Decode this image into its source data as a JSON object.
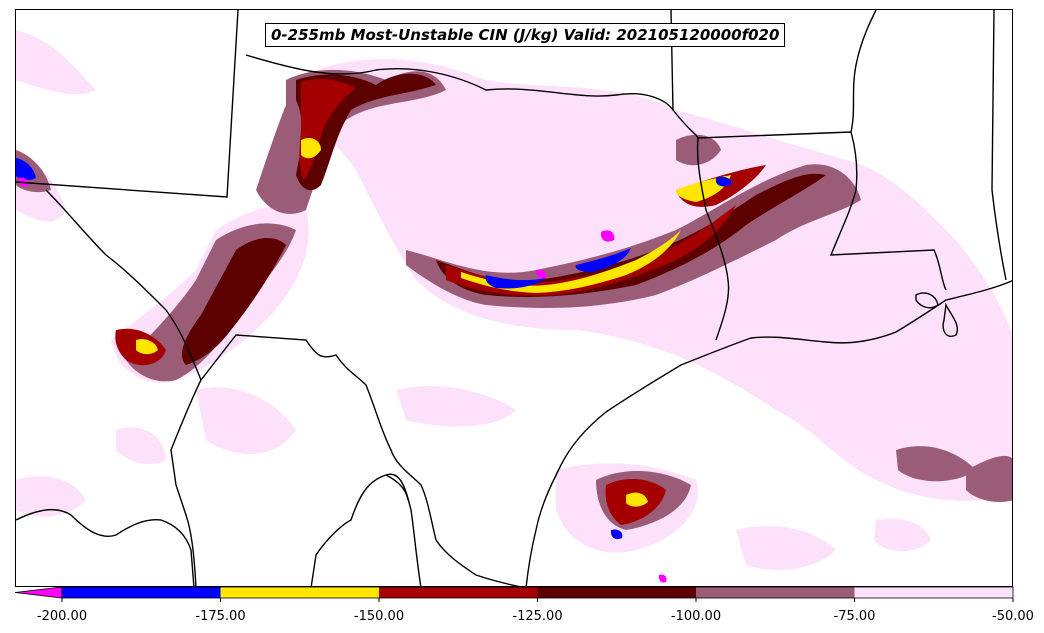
{
  "title": "0-255mb Most-Unstable CIN (J/kg) Valid: 202105120000f020",
  "colorbar": {
    "bins": [
      {
        "from": -200,
        "to": -175,
        "color": "#0000ff"
      },
      {
        "from": -175,
        "to": -150,
        "color": "#ffe600"
      },
      {
        "from": -150,
        "to": -125,
        "color": "#a50000"
      },
      {
        "from": -125,
        "to": -100,
        "color": "#5c0000"
      },
      {
        "from": -100,
        "to": -75,
        "color": "#9b5c78"
      },
      {
        "from": -75,
        "to": -50,
        "color": "#fde1fb"
      }
    ],
    "under_color": "#ff00ff",
    "tick_labels": [
      "-200.00",
      "-175.00",
      "-150.00",
      "-125.00",
      "-100.00",
      "-75.00",
      "-50.00"
    ]
  },
  "colors": {
    "borders": "#000000",
    "background": "#ffffff"
  }
}
